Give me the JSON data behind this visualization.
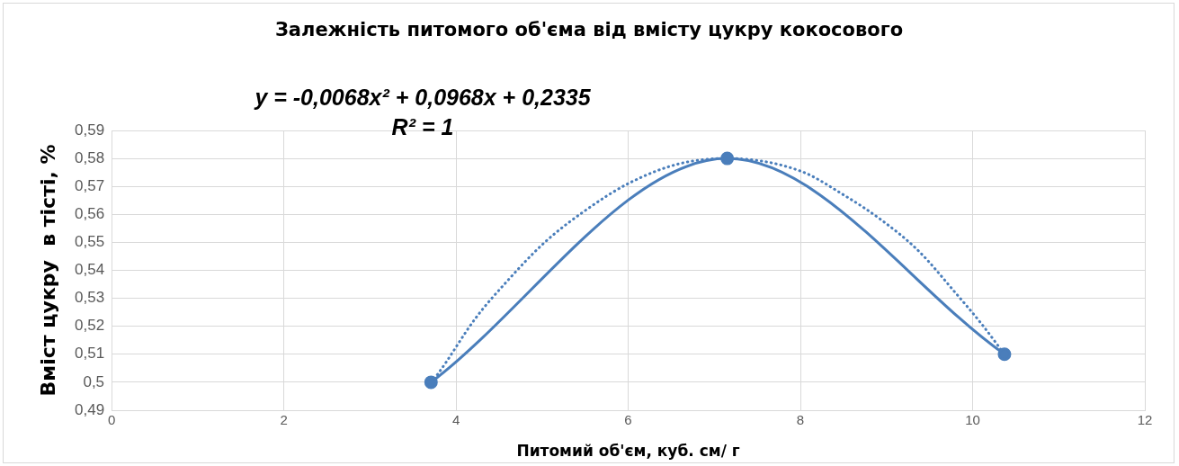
{
  "chart_data": {
    "type": "line",
    "title": "Залежність питомого об'єма від вмісту цукру кокосового",
    "xlabel": "Питомий об'єм, куб. см/ г",
    "ylabel": "Вміст цукру  в тісті, %",
    "annotations": [
      "y = -0,0068x² + 0,0968x + 0,2335",
      "R² = 1"
    ],
    "series": [
      {
        "type": "line",
        "color": "#4a7ebb",
        "marker": "circle",
        "line_style": "solid",
        "x": [
          3.71,
          7.15,
          10.37
        ],
        "values": [
          0.5,
          0.58,
          0.51
        ]
      },
      {
        "type": "line",
        "color": "#4a7ebb",
        "marker": "none",
        "line_style": "dotted",
        "x": [
          3.71,
          3.79,
          4.23,
          4.59,
          5.03,
          5.53,
          6.0,
          6.58,
          7.15,
          8.0,
          8.5,
          8.94,
          9.37,
          9.8,
          10.1,
          10.37
        ],
        "values": [
          0.5,
          0.503,
          0.523,
          0.536,
          0.55,
          0.562,
          0.571,
          0.578,
          0.58,
          0.5755,
          0.567,
          0.558,
          0.547,
          0.532,
          0.521,
          0.51
        ]
      }
    ],
    "xlim": [
      0,
      12
    ],
    "xticks": [
      0,
      2,
      4,
      6,
      8,
      10,
      12
    ],
    "ylim": [
      0.49,
      0.59
    ],
    "yticks": [
      {
        "value": 0.49,
        "label": "0,49"
      },
      {
        "value": 0.5,
        "label": "0,5"
      },
      {
        "value": 0.51,
        "label": "0,51"
      },
      {
        "value": 0.52,
        "label": "0,52"
      },
      {
        "value": 0.53,
        "label": "0,53"
      },
      {
        "value": 0.54,
        "label": "0,54"
      },
      {
        "value": 0.55,
        "label": "0,55"
      },
      {
        "value": 0.56,
        "label": "0,56"
      },
      {
        "value": 0.57,
        "label": "0,57"
      },
      {
        "value": 0.58,
        "label": "0,58"
      },
      {
        "value": 0.59,
        "label": "0,59"
      }
    ],
    "grid": true,
    "legend": false
  }
}
